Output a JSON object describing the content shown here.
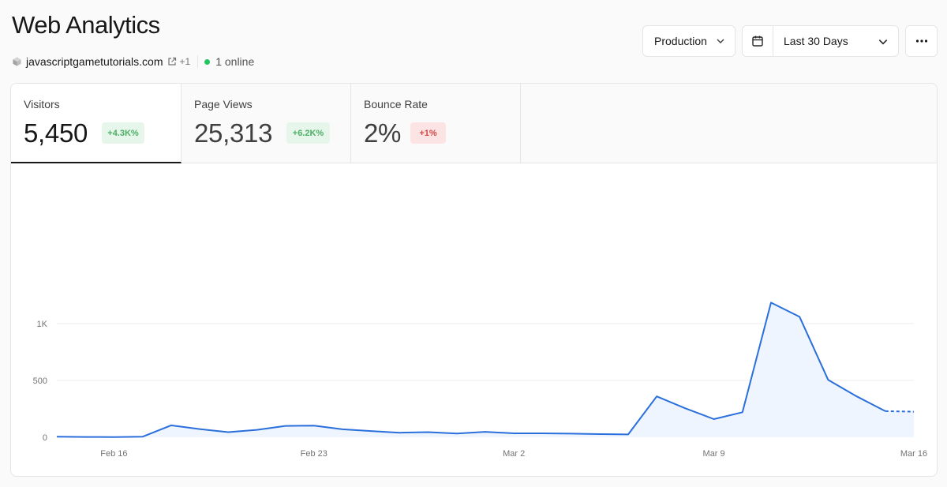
{
  "header": {
    "title": "Web Analytics",
    "domain": "javascriptgametutorials.com",
    "extra_domains": "+1",
    "online": "1 online"
  },
  "toolbar": {
    "environment": "Production",
    "date_range": "Last 30 Days"
  },
  "icons": {
    "project": "cube-icon",
    "external": "external-link-icon",
    "calendar": "calendar-icon",
    "chevron": "chevron-down-icon",
    "more": "more-horizontal-icon"
  },
  "metrics": [
    {
      "label": "Visitors",
      "value": "5,450",
      "delta": "+4.3K%",
      "trend": "up",
      "active": true
    },
    {
      "label": "Page Views",
      "value": "25,313",
      "delta": "+6.2K%",
      "trend": "up",
      "active": false
    },
    {
      "label": "Bounce Rate",
      "value": "2%",
      "delta": "+1%",
      "trend": "down",
      "active": false
    }
  ],
  "colors": {
    "line": "#2a6fdb",
    "area": "#eef5fe",
    "online_dot": "#22c55e"
  },
  "chart_data": {
    "type": "area",
    "y_ticks": [
      "0",
      "500",
      "1K"
    ],
    "y_tick_values": [
      0,
      500,
      1000
    ],
    "ylim": [
      0,
      1000
    ],
    "x_tick_labels": [
      "Feb 16",
      "Feb 23",
      "Mar 2",
      "Mar 9",
      "Mar 16"
    ],
    "x_tick_dates": [
      "2025-02-16",
      "2025-02-23",
      "2025-03-02",
      "2025-03-09",
      "2025-03-16"
    ],
    "grid": true,
    "series": [
      {
        "x": [
          "2025-02-14",
          "2025-02-15",
          "2025-02-16",
          "2025-02-17",
          "2025-02-18",
          "2025-02-19",
          "2025-02-20",
          "2025-02-21",
          "2025-02-22",
          "2025-02-23",
          "2025-02-24",
          "2025-02-25",
          "2025-02-26",
          "2025-02-27",
          "2025-02-28",
          "2025-03-01",
          "2025-03-02",
          "2025-03-03",
          "2025-03-04",
          "2025-03-05",
          "2025-03-06",
          "2025-03-07",
          "2025-03-08",
          "2025-03-09",
          "2025-03-10",
          "2025-03-11",
          "2025-03-12",
          "2025-03-13",
          "2025-03-14",
          "2025-03-15",
          "2025-03-16"
        ],
        "values": [
          5,
          3,
          2,
          5,
          105,
          72,
          45,
          65,
          100,
          103,
          70,
          55,
          40,
          45,
          33,
          48,
          35,
          35,
          32,
          28,
          25,
          360,
          255,
          160,
          220,
          1185,
          1060,
          505,
          360,
          230,
          225
        ],
        "partial_last": true
      }
    ]
  }
}
